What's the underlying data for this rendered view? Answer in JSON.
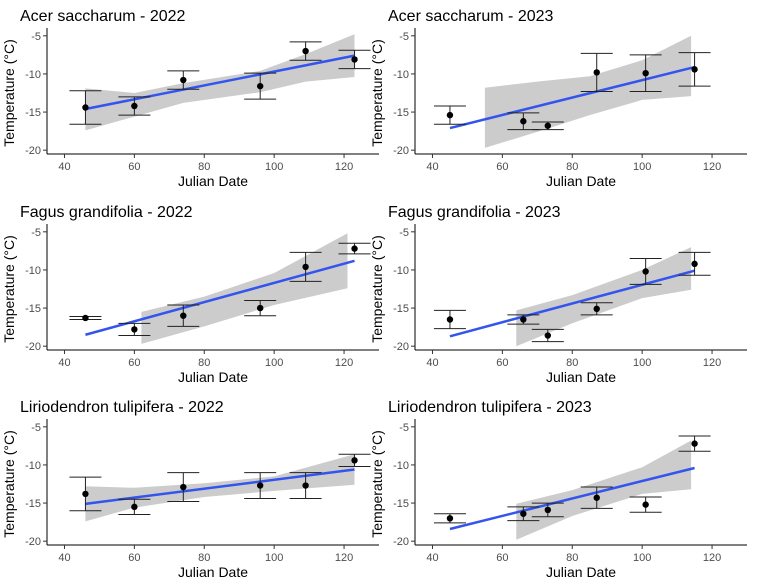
{
  "chart_data": [
    {
      "type": "scatter",
      "title": "Acer saccharum - 2022",
      "xlabel": "Julian Date",
      "ylabel": "Temperature (°C)",
      "xlim": [
        35,
        130
      ],
      "ylim": [
        -20.5,
        -4.5
      ],
      "xticks": [
        40,
        60,
        80,
        100,
        120
      ],
      "yticks": [
        -5,
        -10,
        -15,
        -20
      ],
      "points": [
        {
          "x": 46,
          "y": -14.4,
          "err": 2.2
        },
        {
          "x": 60,
          "y": -14.2,
          "err": 1.2
        },
        {
          "x": 74,
          "y": -10.8,
          "err": 1.2
        },
        {
          "x": 96,
          "y": -11.6,
          "err": 1.7
        },
        {
          "x": 109,
          "y": -7.0,
          "err": 1.2
        },
        {
          "x": 123,
          "y": -8.1,
          "err": 1.2
        }
      ],
      "fit": {
        "x": [
          46,
          123
        ],
        "y": [
          -14.6,
          -7.6
        ]
      },
      "band": {
        "x": [
          46,
          60,
          74,
          96,
          109,
          123
        ],
        "upper": [
          -11.9,
          -12.5,
          -11.2,
          -9.6,
          -7.4,
          -4.8
        ],
        "lower": [
          -17.4,
          -15.6,
          -13.8,
          -12.4,
          -11.0,
          -10.4
        ]
      }
    },
    {
      "type": "scatter",
      "title": "Acer saccharum - 2023",
      "xlabel": "Julian Date",
      "ylabel": "Temperature (°C)",
      "xlim": [
        35,
        130
      ],
      "ylim": [
        -20.5,
        -4.5
      ],
      "xticks": [
        40,
        60,
        80,
        100,
        120
      ],
      "yticks": [
        -5,
        -10,
        -15,
        -20
      ],
      "points": [
        {
          "x": 45,
          "y": -15.4,
          "err": 1.2
        },
        {
          "x": 66,
          "y": -16.2,
          "err": 1.1
        },
        {
          "x": 73,
          "y": -16.8,
          "err": 0.5
        },
        {
          "x": 87,
          "y": -9.8,
          "err": 2.5
        },
        {
          "x": 101,
          "y": -9.9,
          "err": 2.4
        },
        {
          "x": 115,
          "y": -9.4,
          "err": 2.2
        }
      ],
      "fit": {
        "x": [
          45,
          115
        ],
        "y": [
          -17.1,
          -9.1
        ]
      },
      "band": {
        "x": [
          55,
          70,
          85,
          100,
          114
        ],
        "upper": [
          -11.8,
          -11.0,
          -10.3,
          -8.2,
          -5.0
        ],
        "lower": [
          -19.7,
          -17.6,
          -15.4,
          -13.4,
          -12.9
        ]
      }
    },
    {
      "type": "scatter",
      "title": "Fagus grandifolia - 2022",
      "xlabel": "Julian Date",
      "ylabel": "Temperature (°C)",
      "xlim": [
        35,
        130
      ],
      "ylim": [
        -20.5,
        -4.5
      ],
      "xticks": [
        40,
        60,
        80,
        100,
        120
      ],
      "yticks": [
        -5,
        -10,
        -15,
        -20
      ],
      "points": [
        {
          "x": 46,
          "y": -16.3,
          "err": 0.2
        },
        {
          "x": 60,
          "y": -17.8,
          "err": 0.8
        },
        {
          "x": 74,
          "y": -16.0,
          "err": 1.4
        },
        {
          "x": 96,
          "y": -15.0,
          "err": 1.0
        },
        {
          "x": 109,
          "y": -9.6,
          "err": 1.9
        },
        {
          "x": 123,
          "y": -7.2,
          "err": 0.7
        }
      ],
      "fit": {
        "x": [
          46,
          123
        ],
        "y": [
          -18.5,
          -8.8
        ]
      },
      "band": {
        "x": [
          62,
          80,
          100,
          121
        ],
        "upper": [
          -15.5,
          -13.5,
          -10.4,
          -5.2
        ],
        "lower": [
          -19.7,
          -17.4,
          -14.6,
          -12.4
        ]
      }
    },
    {
      "type": "scatter",
      "title": "Fagus grandifolia - 2023",
      "xlabel": "Julian Date",
      "ylabel": "Temperature (°C)",
      "xlim": [
        35,
        130
      ],
      "ylim": [
        -20.5,
        -4.5
      ],
      "xticks": [
        40,
        60,
        80,
        100,
        120
      ],
      "yticks": [
        -5,
        -10,
        -15,
        -20
      ],
      "points": [
        {
          "x": 45,
          "y": -16.5,
          "err": 1.2
        },
        {
          "x": 66,
          "y": -16.5,
          "err": 0.6
        },
        {
          "x": 73,
          "y": -18.6,
          "err": 0.8
        },
        {
          "x": 87,
          "y": -15.1,
          "err": 0.8
        },
        {
          "x": 101,
          "y": -10.2,
          "err": 1.7
        },
        {
          "x": 115,
          "y": -9.2,
          "err": 1.5
        }
      ],
      "fit": {
        "x": [
          45,
          115
        ],
        "y": [
          -18.7,
          -10.1
        ]
      },
      "band": {
        "x": [
          64,
          80,
          100,
          114
        ],
        "upper": [
          -15.3,
          -13.3,
          -10.0,
          -7.0
        ],
        "lower": [
          -20.0,
          -17.0,
          -13.7,
          -12.6
        ]
      }
    },
    {
      "type": "scatter",
      "title": "Liriodendron tulipifera - 2022",
      "xlabel": "Julian Date",
      "ylabel": "Temperature (°C)",
      "xlim": [
        35,
        130
      ],
      "ylim": [
        -20.5,
        -4.5
      ],
      "xticks": [
        40,
        60,
        80,
        100,
        120
      ],
      "yticks": [
        -5,
        -10,
        -15,
        -20
      ],
      "points": [
        {
          "x": 46,
          "y": -13.8,
          "err": 2.2
        },
        {
          "x": 60,
          "y": -15.5,
          "err": 1.0
        },
        {
          "x": 74,
          "y": -12.9,
          "err": 1.9
        },
        {
          "x": 96,
          "y": -12.7,
          "err": 1.7
        },
        {
          "x": 109,
          "y": -12.7,
          "err": 1.7
        },
        {
          "x": 123,
          "y": -9.4,
          "err": 0.8
        }
      ],
      "fit": {
        "x": [
          46,
          123
        ],
        "y": [
          -15.1,
          -10.6
        ]
      },
      "band": {
        "x": [
          46,
          60,
          80,
          100,
          123
        ],
        "upper": [
          -12.8,
          -13.0,
          -12.4,
          -11.5,
          -8.6
        ],
        "lower": [
          -17.4,
          -15.6,
          -14.2,
          -13.4,
          -12.6
        ]
      }
    },
    {
      "type": "scatter",
      "title": "Liriodendron tulipifera - 2023",
      "xlabel": "Julian Date",
      "ylabel": "Temperature (°C)",
      "xlim": [
        35,
        130
      ],
      "ylim": [
        -20.5,
        -4.5
      ],
      "xticks": [
        40,
        60,
        80,
        100,
        120
      ],
      "yticks": [
        -5,
        -10,
        -15,
        -20
      ],
      "points": [
        {
          "x": 45,
          "y": -17.0,
          "err": 0.6
        },
        {
          "x": 66,
          "y": -16.4,
          "err": 0.9
        },
        {
          "x": 73,
          "y": -15.9,
          "err": 0.9
        },
        {
          "x": 87,
          "y": -14.3,
          "err": 1.4
        },
        {
          "x": 101,
          "y": -15.2,
          "err": 1.0
        },
        {
          "x": 115,
          "y": -7.2,
          "err": 1.0
        }
      ],
      "fit": {
        "x": [
          45,
          115
        ],
        "y": [
          -18.4,
          -10.4
        ]
      },
      "band": {
        "x": [
          64,
          80,
          100,
          114
        ],
        "upper": [
          -15.1,
          -13.3,
          -10.3,
          -6.8
        ],
        "lower": [
          -19.8,
          -16.7,
          -13.8,
          -13.2
        ]
      }
    }
  ]
}
